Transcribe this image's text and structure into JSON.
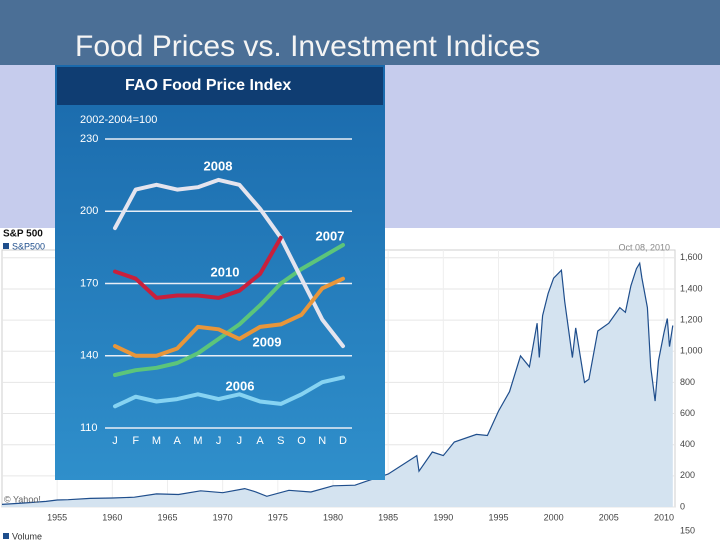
{
  "slide": {
    "title": "Food Prices vs. Investment Indices"
  },
  "chart_data": [
    {
      "type": "line",
      "title": "FAO Food Price Index",
      "subtitle": "2002-2004=100",
      "categories": [
        "J",
        "F",
        "M",
        "A",
        "M",
        "J",
        "J",
        "A",
        "S",
        "O",
        "N",
        "D"
      ],
      "ylim": [
        110,
        230
      ],
      "yticks": [
        110,
        140,
        170,
        200,
        230
      ],
      "grid": true,
      "series": [
        {
          "name": "2006",
          "color": "#86d3f2",
          "values": [
            119,
            123,
            121,
            122,
            124,
            122,
            124,
            121,
            120,
            124,
            129,
            131
          ]
        },
        {
          "name": "2007",
          "color": "#5cc57a",
          "values": [
            132,
            134,
            135,
            137,
            141,
            147,
            153,
            161,
            170,
            176,
            181,
            186
          ]
        },
        {
          "name": "2008",
          "color": "#e4e4ee",
          "values": [
            193,
            209,
            211,
            209,
            210,
            213,
            211,
            201,
            189,
            172,
            155,
            144
          ]
        },
        {
          "name": "2009",
          "color": "#e8963a",
          "values": [
            144,
            140,
            140,
            143,
            152,
            151,
            147,
            152,
            153,
            157,
            168,
            172
          ]
        },
        {
          "name": "2010",
          "color": "#c8203c",
          "values": [
            175,
            172,
            164,
            165,
            165,
            164,
            167,
            174,
            189,
            null,
            null,
            null
          ]
        }
      ]
    },
    {
      "type": "area",
      "title": "S&P 500",
      "date_label": "Oct 08, 2010",
      "source": "© Yahoo!",
      "volume_label": "Volume",
      "volume_tick": 150,
      "xlim": [
        1950,
        2011
      ],
      "xticks": [
        1955,
        1960,
        1965,
        1970,
        1975,
        1980,
        1985,
        1990,
        1995,
        2000,
        2005,
        2010
      ],
      "ylim": [
        0,
        1650
      ],
      "yticks": [
        0,
        200,
        400,
        600,
        800,
        {
          "value": 1000,
          "label": "1,000"
        },
        {
          "value": 1200,
          "label": "1,200"
        },
        {
          "value": 1400,
          "label": "1,400"
        },
        {
          "value": 1600,
          "label": "1,600"
        }
      ],
      "grid": true,
      "series": [
        {
          "name": "S&P500",
          "color": "#1f4e8c",
          "x": [
            1950,
            1952,
            1954,
            1955,
            1956,
            1958,
            1960,
            1962,
            1964,
            1966,
            1968,
            1970,
            1972,
            1973,
            1974,
            1976,
            1978,
            1980,
            1982,
            1983,
            1985,
            1987.6,
            1987.8,
            1989,
            1990,
            1991,
            1993,
            1994,
            1995,
            1996,
            1997,
            1997.8,
            1998.5,
            1998.7,
            1999,
            1999.5,
            2000,
            2000.7,
            2001,
            2001.7,
            2002,
            2002.8,
            2003.2,
            2004,
            2005,
            2006,
            2006.5,
            2007,
            2007.5,
            2007.8,
            2008,
            2008.5,
            2008.8,
            2009.2,
            2009.5,
            2010,
            2010.3,
            2010.5,
            2010.8
          ],
          "values": [
            17,
            26,
            36,
            45,
            47,
            55,
            58,
            63,
            84,
            80,
            104,
            92,
            118,
            97,
            69,
            107,
            96,
            136,
            140,
            165,
            211,
            330,
            230,
            353,
            330,
            417,
            466,
            459,
            616,
            740,
            970,
            900,
            1180,
            960,
            1229,
            1370,
            1469,
            1520,
            1320,
            960,
            1150,
            800,
            820,
            1130,
            1180,
            1280,
            1250,
            1420,
            1530,
            1565,
            1470,
            1280,
            900,
            680,
            940,
            1120,
            1210,
            1030,
            1165
          ]
        }
      ]
    }
  ]
}
